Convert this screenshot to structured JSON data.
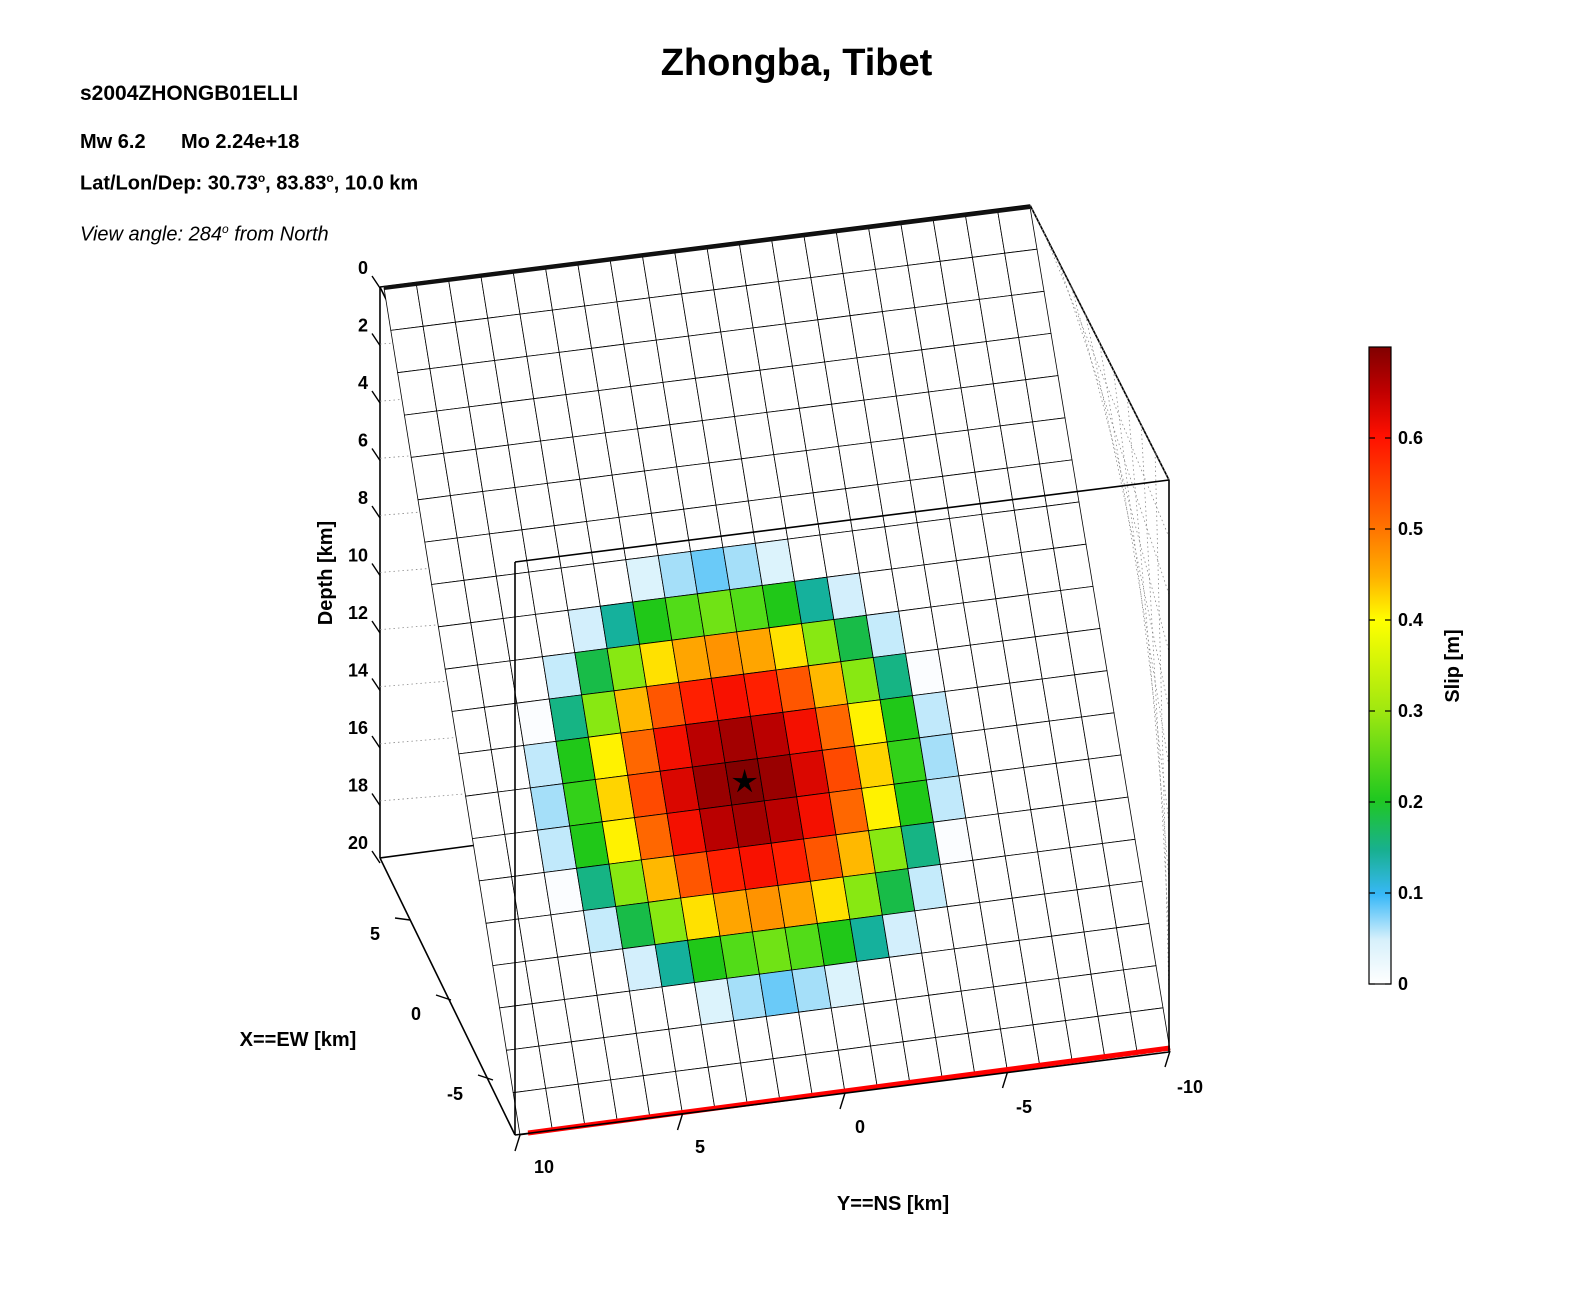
{
  "figure": {
    "title": "Zhongba, Tibet",
    "model_id": "s2004ZHONGB01ELLI",
    "magnitude": "Mw 6.2",
    "moment": "Mo 2.24e+18",
    "location_label": "Lat/Lon/Dep: ",
    "lat": "30.73",
    "lon": "83.83",
    "depth": "10.0 km",
    "view_prefix": "View angle: 284",
    "view_suffix": " from North",
    "degree_symbol": "o",
    "comma": ", "
  },
  "chart_data": {
    "type": "heatmap",
    "title": "Zhongba, Tibet",
    "grid": {
      "columns": 20,
      "rows": 20,
      "mode": "elliptical slip patch"
    },
    "peak_slip": 0.7,
    "hypocenter": {
      "along_strike_cell": 8.5,
      "down_dip_cell": 12.5
    },
    "depth_axis": {
      "label": "Depth [km]",
      "ticks": [
        "0",
        "2",
        "4",
        "6",
        "8",
        "10",
        "12",
        "14",
        "16",
        "18",
        "20"
      ],
      "range": [
        0,
        20
      ]
    },
    "x_axis": {
      "label": "X==EW [km]",
      "ticks": [
        "5",
        "0",
        "-5"
      ]
    },
    "y_axis": {
      "label": "Y==NS [km]",
      "ticks": [
        "10",
        "5",
        "0",
        "-5",
        "-10"
      ]
    },
    "colorbar": {
      "label": "Slip [m]",
      "ticks": [
        "0",
        "0.1",
        "0.2",
        "0.3",
        "0.4",
        "0.5",
        "0.6"
      ],
      "range": [
        0,
        0.7
      ],
      "colormap": "white-blue-green-yellow-red-darkred"
    },
    "colors": {
      "surface_trace": "#ff0000",
      "grid_line": "#000000",
      "box_line": "#000000"
    }
  }
}
